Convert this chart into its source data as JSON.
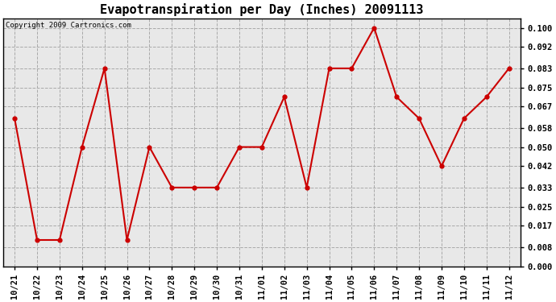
{
  "title": "Evapotranspiration per Day (Inches) 20091113",
  "copyright": "Copyright 2009 Cartronics.com",
  "labels": [
    "10/21",
    "10/22",
    "10/23",
    "10/24",
    "10/25",
    "10/26",
    "10/27",
    "10/28",
    "10/29",
    "10/30",
    "10/31",
    "11/01",
    "11/02",
    "11/03",
    "11/04",
    "11/05",
    "11/06",
    "11/07",
    "11/08",
    "11/09",
    "11/10",
    "11/11",
    "11/12"
  ],
  "values": [
    0.062,
    0.011,
    0.011,
    0.05,
    0.083,
    0.011,
    0.05,
    0.033,
    0.033,
    0.033,
    0.05,
    0.05,
    0.071,
    0.033,
    0.083,
    0.083,
    0.1,
    0.071,
    0.062,
    0.042,
    0.062,
    0.071,
    0.083
  ],
  "line_color": "#cc0000",
  "marker_color": "#cc0000",
  "bg_color": "#ffffff",
  "plot_bg_color": "#e8e8e8",
  "grid_color": "#aaaaaa",
  "title_fontsize": 11,
  "copyright_fontsize": 6.5,
  "tick_fontsize": 7.5,
  "ylim": [
    0.0,
    0.104
  ],
  "yticks": [
    0.0,
    0.008,
    0.017,
    0.025,
    0.033,
    0.042,
    0.05,
    0.058,
    0.067,
    0.075,
    0.083,
    0.092,
    0.1
  ]
}
